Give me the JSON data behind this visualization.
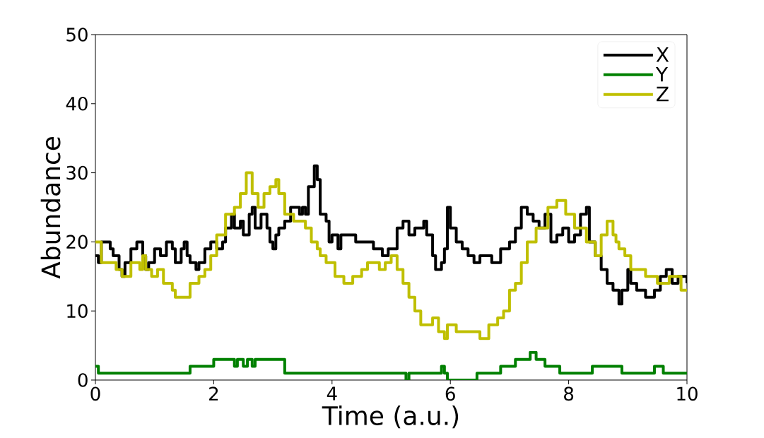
{
  "chart_data": {
    "type": "step",
    "xlabel": "Time (a.u.)",
    "ylabel": "Abundance",
    "xlim": [
      0,
      10
    ],
    "ylim": [
      0,
      50
    ],
    "xticks": [
      0,
      2,
      4,
      6,
      8,
      10
    ],
    "yticks": [
      0,
      10,
      20,
      30,
      40,
      50
    ],
    "legend": "top right",
    "series": [
      {
        "name": "X",
        "color": "#000000",
        "x": [
          0,
          0.05,
          0.1,
          0.25,
          0.3,
          0.4,
          0.45,
          0.5,
          0.6,
          0.7,
          0.8,
          0.85,
          0.9,
          1.0,
          1.1,
          1.2,
          1.3,
          1.35,
          1.45,
          1.5,
          1.55,
          1.6,
          1.7,
          1.75,
          1.85,
          1.95,
          2.05,
          2.15,
          2.2,
          2.3,
          2.35,
          2.45,
          2.5,
          2.6,
          2.65,
          2.7,
          2.8,
          2.9,
          2.95,
          3.0,
          3.05,
          3.1,
          3.2,
          3.3,
          3.45,
          3.5,
          3.55,
          3.6,
          3.7,
          3.75,
          3.8,
          3.9,
          3.95,
          4.0,
          4.1,
          4.15,
          4.4,
          4.7,
          4.85,
          4.95,
          5.1,
          5.2,
          5.3,
          5.4,
          5.55,
          5.6,
          5.7,
          5.75,
          5.85,
          5.9,
          5.95,
          6.0,
          6.1,
          6.2,
          6.3,
          6.4,
          6.5,
          6.7,
          6.85,
          7.0,
          7.1,
          7.2,
          7.3,
          7.4,
          7.5,
          7.6,
          7.7,
          7.8,
          7.9,
          8.0,
          8.1,
          8.2,
          8.3,
          8.35,
          8.45,
          8.55,
          8.65,
          8.75,
          8.85,
          8.9,
          9.0,
          9.05,
          9.15,
          9.3,
          9.45,
          9.55,
          9.65,
          9.75,
          9.85,
          10
        ],
        "values": [
          18,
          17,
          20,
          19,
          18,
          16,
          15,
          17,
          19,
          20,
          18,
          16,
          17,
          19,
          18,
          20,
          19,
          17,
          19,
          20,
          18,
          17,
          16,
          17,
          19,
          20,
          19,
          20,
          22,
          24,
          22,
          23,
          21,
          24,
          25,
          22,
          24,
          22,
          20,
          19,
          21,
          22,
          23,
          25,
          24,
          25,
          24,
          28,
          31,
          29,
          24,
          23,
          20,
          21,
          19,
          21,
          20,
          19,
          18,
          19,
          22,
          23,
          21,
          22,
          23,
          21,
          18,
          16,
          17,
          19,
          25,
          22,
          20,
          19,
          18,
          17,
          18,
          17,
          19,
          20,
          22,
          25,
          24,
          23,
          22,
          24,
          20,
          21,
          22,
          20,
          21,
          24,
          25,
          20,
          18,
          16,
          14,
          13,
          11,
          13,
          16,
          14,
          13,
          12,
          13,
          15,
          16,
          14,
          15,
          14
        ]
      },
      {
        "name": "Y",
        "color": "#008000",
        "x": [
          0,
          0.05,
          1.6,
          2.0,
          2.35,
          2.4,
          2.5,
          2.57,
          2.65,
          2.7,
          3.2,
          5.25,
          5.3,
          5.85,
          5.9,
          5.95,
          6.45,
          6.85,
          7.1,
          7.35,
          7.45,
          7.6,
          7.85,
          8.4,
          8.9,
          9.45,
          9.6,
          10
        ],
        "values": [
          2,
          1,
          2,
          3,
          2,
          3,
          2,
          3,
          2,
          3,
          1,
          0,
          1,
          2,
          1,
          0,
          1,
          2,
          3,
          4,
          3,
          2,
          1,
          2,
          1,
          2,
          1,
          1
        ]
      },
      {
        "name": "Z",
        "color": "#bfbf00",
        "x": [
          0,
          0.1,
          0.35,
          0.45,
          0.6,
          0.75,
          0.8,
          0.85,
          0.95,
          1.05,
          1.15,
          1.3,
          1.35,
          1.6,
          1.75,
          1.85,
          1.95,
          2.05,
          2.2,
          2.35,
          2.45,
          2.55,
          2.65,
          2.75,
          2.85,
          2.95,
          3.05,
          3.1,
          3.2,
          3.35,
          3.55,
          3.65,
          3.75,
          3.8,
          3.9,
          4.05,
          4.2,
          4.35,
          4.5,
          4.6,
          4.8,
          4.9,
          5.0,
          5.1,
          5.2,
          5.3,
          5.4,
          5.5,
          5.7,
          5.8,
          5.9,
          5.95,
          6.1,
          6.5,
          6.65,
          6.8,
          6.9,
          7.0,
          7.1,
          7.2,
          7.3,
          7.45,
          7.65,
          7.8,
          7.95,
          8.1,
          8.3,
          8.45,
          8.55,
          8.65,
          8.75,
          8.8,
          8.85,
          8.95,
          9.05,
          9.3,
          9.5,
          9.7,
          9.9,
          10
        ],
        "values": [
          20,
          17,
          16,
          15,
          17,
          16,
          18,
          16,
          15,
          16,
          14,
          13,
          12,
          14,
          15,
          16,
          18,
          21,
          24,
          25,
          27,
          30,
          27,
          25,
          27,
          28,
          29,
          27,
          24,
          23,
          22,
          20,
          19,
          18,
          17,
          15,
          14,
          15,
          16,
          17,
          16,
          17,
          18,
          16,
          14,
          12,
          10,
          8,
          9,
          7,
          6,
          8,
          7,
          6,
          8,
          9,
          10,
          13,
          14,
          17,
          20,
          22,
          25,
          26,
          24,
          22,
          20,
          18,
          21,
          23,
          21,
          20,
          19,
          18,
          16,
          15,
          14,
          15,
          13,
          13
        ]
      }
    ]
  }
}
